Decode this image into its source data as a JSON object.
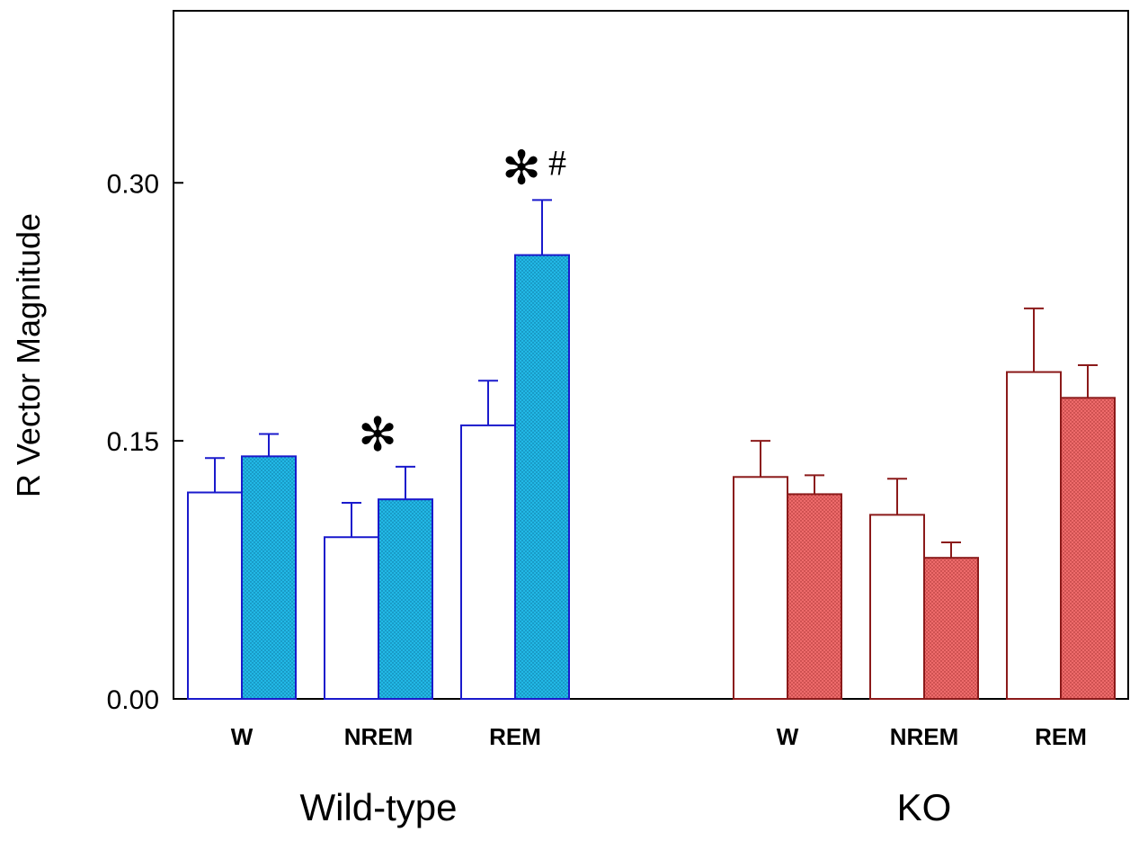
{
  "chart_data": {
    "type": "bar",
    "title": "",
    "ylabel": "R Vector Magnitude",
    "ylim": [
      0,
      0.4
    ],
    "yticks": [
      0.0,
      0.15,
      0.3
    ],
    "ytick_labels": [
      "0.00",
      "0.15",
      "0.30"
    ],
    "groups": [
      {
        "name": "Wild-type",
        "colors": {
          "line": "#1a1acc",
          "fill": "#22b8e6",
          "open_fill": "#ffffff"
        },
        "categories": [
          {
            "label": "W",
            "open": {
              "value": 0.12,
              "err": 0.02
            },
            "filled": {
              "value": 0.141,
              "err": 0.013
            },
            "sig": ""
          },
          {
            "label": "NREM",
            "open": {
              "value": 0.094,
              "err": 0.02
            },
            "filled": {
              "value": 0.116,
              "err": 0.019
            },
            "sig": "*"
          },
          {
            "label": "REM",
            "open": {
              "value": 0.159,
              "err": 0.026
            },
            "filled": {
              "value": 0.258,
              "err": 0.032
            },
            "sig": "*#"
          }
        ]
      },
      {
        "name": "KO",
        "colors": {
          "line": "#8b1a1a",
          "fill": "#ee6b6b",
          "open_fill": "#ffffff"
        },
        "categories": [
          {
            "label": "W",
            "open": {
              "value": 0.129,
              "err": 0.021
            },
            "filled": {
              "value": 0.119,
              "err": 0.011
            },
            "sig": ""
          },
          {
            "label": "NREM",
            "open": {
              "value": 0.107,
              "err": 0.021
            },
            "filled": {
              "value": 0.082,
              "err": 0.009
            },
            "sig": ""
          },
          {
            "label": "REM",
            "open": {
              "value": 0.19,
              "err": 0.037
            },
            "filled": {
              "value": 0.175,
              "err": 0.019
            },
            "sig": ""
          }
        ]
      }
    ],
    "significance_symbols": {
      "star": "✻",
      "hash": "#"
    }
  }
}
